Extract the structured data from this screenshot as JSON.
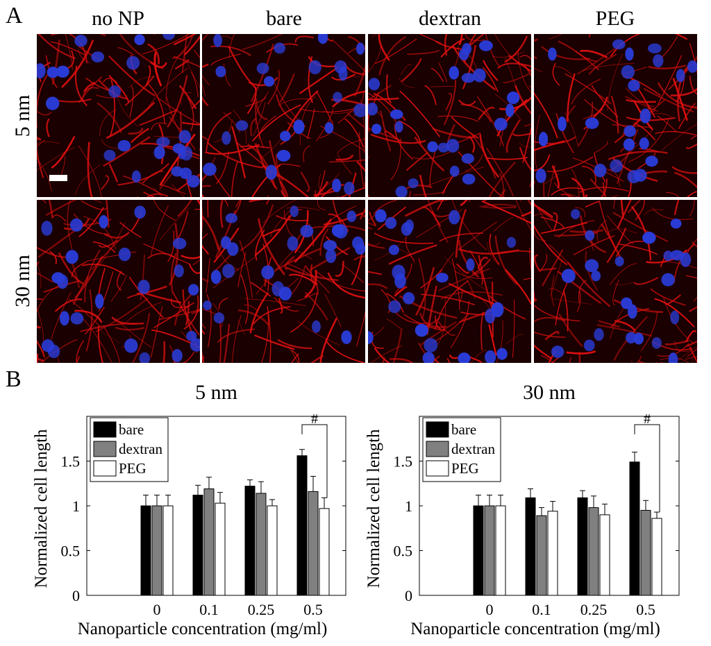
{
  "panel_a": {
    "letter": "A",
    "columns": [
      "no NP",
      "bare",
      "dextran",
      "PEG"
    ],
    "rows": [
      "5 nm",
      "30 nm"
    ],
    "image_description": "Fluorescence micrographs: red actin cytoskeleton, blue nuclei"
  },
  "panel_b": {
    "letter": "B"
  },
  "colors": {
    "actin": "#e01010",
    "nucleus": "#2a3cd8",
    "background": "#1a0000",
    "bare": "#000000",
    "dextran": "#808080",
    "peg": "#ffffff"
  },
  "chart_data": [
    {
      "type": "bar",
      "title": "5 nm",
      "xlabel": "Nanoparticle concentration (mg/ml)",
      "ylabel": "Normalized cell length",
      "categories": [
        "0",
        "0.1",
        "0.25",
        "0.5"
      ],
      "ylim": [
        0,
        2
      ],
      "yticks": [
        "0",
        "0.5",
        "1",
        "1.5"
      ],
      "legend_position": "top-left",
      "series": [
        {
          "name": "bare",
          "values": [
            1.0,
            1.12,
            1.22,
            1.56
          ],
          "errors": [
            0.12,
            0.11,
            0.07,
            0.07
          ]
        },
        {
          "name": "dextran",
          "values": [
            1.0,
            1.19,
            1.14,
            1.16
          ],
          "errors": [
            0.12,
            0.13,
            0.13,
            0.17
          ]
        },
        {
          "name": "PEG",
          "values": [
            1.0,
            1.03,
            1.0,
            0.97
          ],
          "errors": [
            0.12,
            0.12,
            0.07,
            0.12
          ]
        }
      ],
      "annotation": {
        "text": "#",
        "category_index": 3,
        "from_series": 0,
        "to_series": 2
      }
    },
    {
      "type": "bar",
      "title": "30 nm",
      "xlabel": "Nanoparticle concentration (mg/ml)",
      "ylabel": "Normalized cell length",
      "categories": [
        "0",
        "0.1",
        "0.25",
        "0.5"
      ],
      "ylim": [
        0,
        2
      ],
      "yticks": [
        "0",
        "0.5",
        "1",
        "1.5"
      ],
      "legend_position": "top-left",
      "series": [
        {
          "name": "bare",
          "values": [
            1.0,
            1.09,
            1.09,
            1.49
          ],
          "errors": [
            0.12,
            0.1,
            0.08,
            0.11
          ]
        },
        {
          "name": "dextran",
          "values": [
            1.0,
            0.89,
            0.98,
            0.95
          ],
          "errors": [
            0.12,
            0.09,
            0.13,
            0.11
          ]
        },
        {
          "name": "PEG",
          "values": [
            1.0,
            0.94,
            0.9,
            0.86
          ],
          "errors": [
            0.12,
            0.11,
            0.12,
            0.07
          ]
        }
      ],
      "annotation": {
        "text": "#",
        "category_index": 3,
        "from_series": 0,
        "to_series": 2
      }
    }
  ]
}
